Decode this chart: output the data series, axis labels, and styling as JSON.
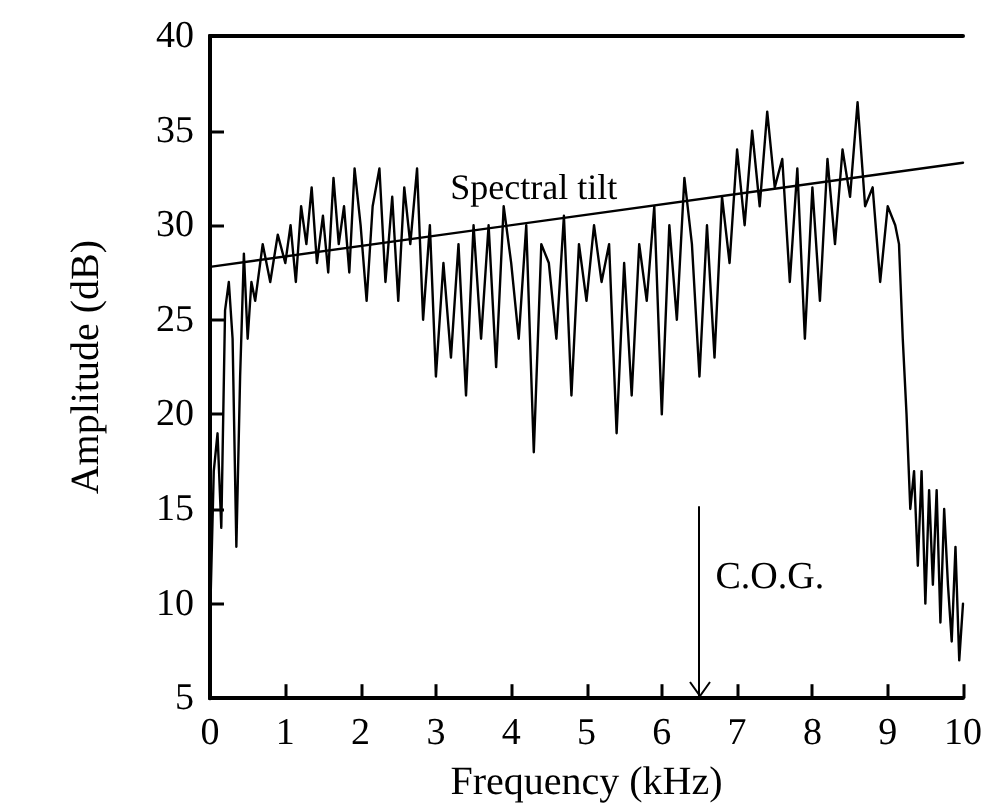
{
  "chart_data": {
    "type": "line",
    "xlabel": "Frequency (kHz)",
    "ylabel": "Amplitude (dB)",
    "xlim": [
      0,
      10
    ],
    "ylim": [
      5,
      40
    ],
    "xticks": [
      0,
      1,
      2,
      3,
      4,
      5,
      6,
      7,
      8,
      9,
      10
    ],
    "yticks": [
      5,
      10,
      15,
      20,
      25,
      30,
      35,
      40
    ],
    "grid": false,
    "marker": "none",
    "line_style": "solid",
    "series": [
      {
        "color": "#000000",
        "x": [
          0,
          0.05,
          0.1,
          0.15,
          0.2,
          0.25,
          0.3,
          0.35,
          0.4,
          0.45,
          0.5,
          0.55,
          0.6,
          0.7,
          0.8,
          0.9,
          1.0,
          1.07,
          1.14,
          1.21,
          1.28,
          1.35,
          1.42,
          1.5,
          1.57,
          1.64,
          1.71,
          1.78,
          1.85,
          1.92,
          2.0,
          2.08,
          2.16,
          2.25,
          2.33,
          2.42,
          2.5,
          2.58,
          2.66,
          2.75,
          2.83,
          2.92,
          3.0,
          3.1,
          3.2,
          3.3,
          3.4,
          3.5,
          3.6,
          3.7,
          3.8,
          3.9,
          4.0,
          4.1,
          4.2,
          4.3,
          4.4,
          4.5,
          4.6,
          4.7,
          4.8,
          4.9,
          5.0,
          5.1,
          5.2,
          5.3,
          5.4,
          5.5,
          5.6,
          5.7,
          5.8,
          5.9,
          6.0,
          6.1,
          6.2,
          6.3,
          6.4,
          6.5,
          6.6,
          6.7,
          6.8,
          6.9,
          7.0,
          7.1,
          7.2,
          7.3,
          7.4,
          7.5,
          7.6,
          7.7,
          7.8,
          7.9,
          8.0,
          8.1,
          8.2,
          8.3,
          8.4,
          8.5,
          8.6,
          8.7,
          8.8,
          8.9,
          9.0,
          9.1,
          9.15,
          9.2,
          9.25,
          9.3,
          9.35,
          9.4,
          9.45,
          9.5,
          9.55,
          9.6,
          9.65,
          9.7,
          9.75,
          9.8,
          9.85,
          9.9,
          9.95,
          10.0
        ],
        "values": [
          9,
          17,
          19,
          14,
          25.5,
          27,
          24,
          13,
          22,
          28.5,
          24,
          27,
          26,
          29,
          27,
          29.5,
          28,
          30,
          27,
          31,
          29,
          32,
          28,
          30.5,
          27.5,
          32.5,
          29,
          31,
          27.5,
          33,
          30,
          26,
          31,
          33,
          27,
          31.5,
          26,
          32,
          29,
          33,
          25,
          30,
          22,
          28,
          23,
          29,
          21,
          30,
          24,
          30,
          22.5,
          31,
          28,
          24,
          30,
          18,
          29,
          28,
          24,
          30.5,
          21,
          29,
          26,
          30,
          27,
          29,
          19,
          28,
          21,
          29,
          26,
          31,
          20,
          30,
          25,
          32.5,
          29,
          22,
          30,
          23,
          31.5,
          28,
          34,
          30,
          35,
          31,
          36,
          32,
          33.5,
          27,
          33,
          24,
          32,
          26,
          33.5,
          29,
          34,
          31.5,
          36.5,
          31,
          32,
          27,
          31,
          30,
          29,
          24,
          20,
          15,
          17,
          12,
          17,
          10,
          16,
          11,
          16,
          9,
          15,
          11,
          8,
          13,
          7,
          10
        ]
      },
      {
        "color": "#000000",
        "x": [
          0,
          10
        ],
        "values": [
          27.8,
          33.3
        ]
      }
    ],
    "ref_lines": [
      {
        "axis": "x",
        "value": 6.5,
        "label": "C.O.G."
      }
    ],
    "annotations": [
      {
        "text": "Spectral tilt",
        "x": 4.3,
        "y": 30.2
      }
    ]
  }
}
